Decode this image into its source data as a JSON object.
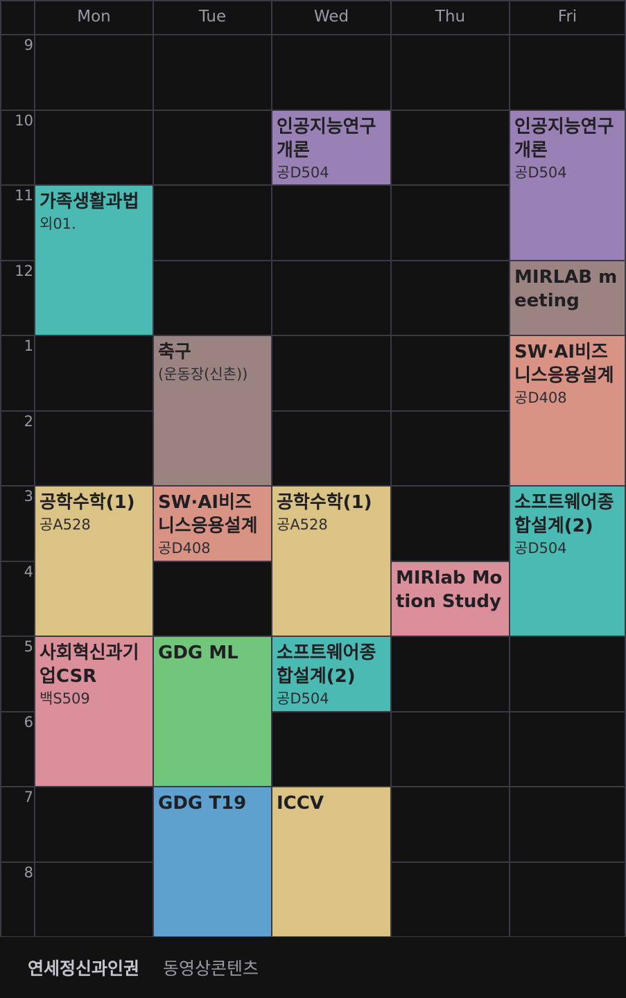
{
  "days": [
    "Mon",
    "Tue",
    "Wed",
    "Thu",
    "Fri"
  ],
  "hours": [
    "9",
    "10",
    "11",
    "12",
    "1",
    "2",
    "3",
    "4",
    "5",
    "6",
    "7",
    "8"
  ],
  "events": [
    {
      "day": 2,
      "start": 1,
      "duration": 1,
      "title": "인공지능연구개론",
      "room": "공D504",
      "color": "#9a81b5"
    },
    {
      "day": 4,
      "start": 1,
      "duration": 2,
      "title": "인공지능연구개론",
      "room": "공D504",
      "color": "#9a81b5"
    },
    {
      "day": 0,
      "start": 2,
      "duration": 2,
      "title": "가족생활과법",
      "room": "외01.",
      "color": "#4bbab2"
    },
    {
      "day": 4,
      "start": 3,
      "duration": 1,
      "title": "MIRLAB meeting",
      "room": "",
      "color": "#9b8381"
    },
    {
      "day": 1,
      "start": 4,
      "duration": 2,
      "title": "축구",
      "room": "(운동장(신촌))",
      "color": "#9b8381"
    },
    {
      "day": 4,
      "start": 4,
      "duration": 2,
      "title": "SW·AI비즈니스응용설계",
      "room": "공D408",
      "color": "#d99384"
    },
    {
      "day": 0,
      "start": 6,
      "duration": 2,
      "title": "공학수학(1)",
      "room": "공A528",
      "color": "#dbc385"
    },
    {
      "day": 1,
      "start": 6,
      "duration": 1,
      "title": "SW·AI비즈니스응용설계",
      "room": "공D408",
      "color": "#d99384"
    },
    {
      "day": 2,
      "start": 6,
      "duration": 2,
      "title": "공학수학(1)",
      "room": "공A528",
      "color": "#dbc385"
    },
    {
      "day": 4,
      "start": 6,
      "duration": 2,
      "title": "소프트웨어종합설계(2)",
      "room": "공D504",
      "color": "#4bbab2"
    },
    {
      "day": 3,
      "start": 7,
      "duration": 1,
      "title": "MIRlab Motion Study",
      "room": "",
      "color": "#db8f9a"
    },
    {
      "day": 0,
      "start": 8,
      "duration": 2,
      "title": "사회혁신과기업CSR",
      "room": "백S509",
      "color": "#db8f9a"
    },
    {
      "day": 1,
      "start": 8,
      "duration": 2,
      "title": "GDG ML",
      "room": "",
      "color": "#72c67b"
    },
    {
      "day": 2,
      "start": 8,
      "duration": 1,
      "title": "소프트웨어종합설계(2)",
      "room": "공D504",
      "color": "#4bbab2"
    },
    {
      "day": 1,
      "start": 10,
      "duration": 2,
      "title": "GDG T19",
      "room": "",
      "color": "#5ea1cf"
    },
    {
      "day": 2,
      "start": 10,
      "duration": 2,
      "title": "ICCV",
      "room": "",
      "color": "#dbc385"
    }
  ],
  "footer": {
    "item1": "연세정신과인권",
    "item2": "동영상콘텐츠"
  }
}
